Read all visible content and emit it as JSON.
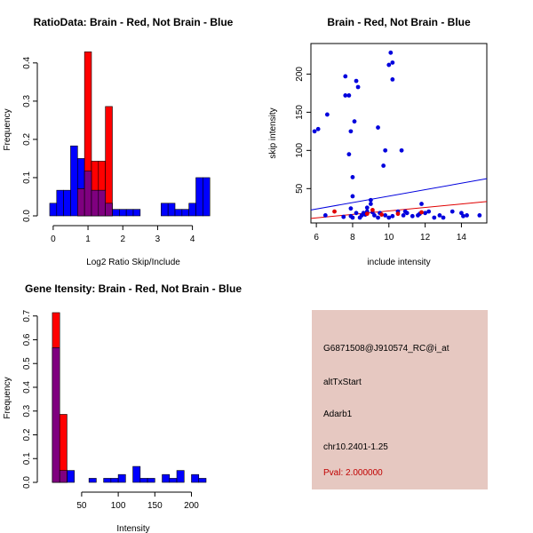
{
  "colors": {
    "red": "#ff0000",
    "blue": "#0000ff",
    "overlap": "#7f007f",
    "red_point": "#e00000",
    "blue_point": "#0000dd",
    "panel_bg": "#e6c8c1",
    "pval": "#c00000"
  },
  "chart_data": [
    {
      "id": "ratio",
      "type": "bar",
      "title": "RatioData: Brain - Red, Not Brain - Blue",
      "xlabel": "Log2 Ratio Skip/Include",
      "ylabel": "Frequency",
      "xlim": [
        -0.15,
        4.75
      ],
      "ylim": [
        0,
        0.46
      ],
      "xticks": [
        0,
        1,
        2,
        3,
        4
      ],
      "yticks": [
        0.0,
        0.1,
        0.2,
        0.3,
        0.4
      ],
      "ytick_labels": [
        "0.0",
        "0.1",
        "0.2",
        "0.3",
        "0.4"
      ],
      "bin_width": 0.2,
      "series": [
        {
          "name": "Not Brain",
          "color": "blue",
          "bins": [
            [
              -0.1,
              0.1,
              0.033
            ],
            [
              0.1,
              0.3,
              0.067
            ],
            [
              0.3,
              0.5,
              0.067
            ],
            [
              0.5,
              0.7,
              0.183
            ],
            [
              0.7,
              0.9,
              0.15
            ],
            [
              0.9,
              1.1,
              0.117
            ],
            [
              1.1,
              1.3,
              0.067
            ],
            [
              1.3,
              1.5,
              0.067
            ],
            [
              1.5,
              1.7,
              0.033
            ],
            [
              1.7,
              1.9,
              0.017
            ],
            [
              1.9,
              2.1,
              0.017
            ],
            [
              2.1,
              2.3,
              0.017
            ],
            [
              2.3,
              2.5,
              0.017
            ],
            [
              3.1,
              3.3,
              0.033
            ],
            [
              3.3,
              3.5,
              0.033
            ],
            [
              3.5,
              3.7,
              0.017
            ],
            [
              3.7,
              3.9,
              0.017
            ],
            [
              3.9,
              4.1,
              0.033
            ],
            [
              4.1,
              4.3,
              0.1
            ],
            [
              4.3,
              4.5,
              0.1
            ]
          ]
        },
        {
          "name": "Brain",
          "color": "red",
          "bins": [
            [
              0.7,
              0.9,
              0.071
            ],
            [
              0.9,
              1.1,
              0.429
            ],
            [
              1.1,
              1.3,
              0.143
            ],
            [
              1.3,
              1.5,
              0.143
            ],
            [
              1.5,
              1.7,
              0.286
            ]
          ]
        }
      ]
    },
    {
      "id": "scatter",
      "type": "scatter",
      "title": "Brain - Red, Not Brain - Blue",
      "xlabel": "include intensity",
      "ylabel": "skip intensity",
      "xlim": [
        5.7,
        15.4
      ],
      "ylim": [
        5,
        240
      ],
      "xticks": [
        6,
        8,
        10,
        12,
        14
      ],
      "yticks": [
        50,
        100,
        150,
        200
      ],
      "series": [
        {
          "name": "Not Brain",
          "color": "blue_point",
          "points": [
            [
              5.9,
              125
            ],
            [
              6.1,
              128
            ],
            [
              6.6,
              147
            ],
            [
              7.6,
              197
            ],
            [
              7.6,
              172
            ],
            [
              7.8,
              172
            ],
            [
              7.8,
              95
            ],
            [
              7.9,
              125
            ],
            [
              8.1,
              138
            ],
            [
              8.2,
              191
            ],
            [
              8.3,
              183
            ],
            [
              8.0,
              65
            ],
            [
              8.0,
              40
            ],
            [
              9.4,
              130
            ],
            [
              9.7,
              80
            ],
            [
              9.8,
              100
            ],
            [
              10.0,
              212
            ],
            [
              10.2,
              215
            ],
            [
              10.1,
              228
            ],
            [
              10.2,
              193
            ],
            [
              10.7,
              100
            ],
            [
              9.0,
              35
            ],
            [
              8.8,
              25
            ],
            [
              8.8,
              20
            ],
            [
              8.6,
              18
            ],
            [
              8.4,
              12
            ],
            [
              8.5,
              15
            ],
            [
              7.9,
              14
            ],
            [
              8.0,
              12
            ],
            [
              7.5,
              13
            ],
            [
              6.5,
              15
            ],
            [
              9.0,
              30
            ],
            [
              9.2,
              15
            ],
            [
              9.4,
              12
            ],
            [
              9.5,
              18
            ],
            [
              9.8,
              15
            ],
            [
              10.0,
              12
            ],
            [
              10.2,
              14
            ],
            [
              10.5,
              20
            ],
            [
              10.8,
              15
            ],
            [
              11.0,
              18
            ],
            [
              11.3,
              14
            ],
            [
              11.6,
              15
            ],
            [
              11.8,
              30
            ],
            [
              12.0,
              18
            ],
            [
              12.2,
              20
            ],
            [
              12.5,
              12
            ],
            [
              12.8,
              15
            ],
            [
              13.0,
              12
            ],
            [
              13.5,
              20
            ],
            [
              14.0,
              18
            ],
            [
              14.1,
              14
            ],
            [
              14.3,
              15
            ],
            [
              15.0,
              15
            ],
            [
              8.2,
              18
            ],
            [
              7.9,
              24
            ],
            [
              8.7,
              16
            ],
            [
              9.1,
              19
            ],
            [
              10.9,
              20
            ],
            [
              11.7,
              17
            ]
          ]
        },
        {
          "name": "Brain",
          "color": "red_point",
          "points": [
            [
              7.0,
              20
            ],
            [
              8.8,
              17
            ],
            [
              9.1,
              22
            ],
            [
              9.6,
              16
            ],
            [
              10.5,
              17
            ],
            [
              11.8,
              19
            ]
          ]
        }
      ],
      "fits": [
        {
          "name": "Not Brain fit",
          "color": "blue_point",
          "from": [
            5.7,
            22
          ],
          "to": [
            15.4,
            63
          ]
        },
        {
          "name": "Brain fit",
          "color": "red_point",
          "from": [
            5.7,
            11
          ],
          "to": [
            15.4,
            33
          ]
        }
      ]
    },
    {
      "id": "gene",
      "type": "bar",
      "title": "Gene Itensity: Brain - Red, Not Brain - Blue",
      "xlabel": "Intensity",
      "ylabel": "Frequency",
      "xlim": [
        4,
        237
      ],
      "ylim": [
        0,
        0.74
      ],
      "xticks": [
        50,
        100,
        150,
        200
      ],
      "yticks": [
        0.0,
        0.1,
        0.2,
        0.3,
        0.4,
        0.5,
        0.6,
        0.7
      ],
      "ytick_labels": [
        "0.0",
        "0.1",
        "0.2",
        "0.3",
        "0.4",
        "0.5",
        "0.6",
        "0.7"
      ],
      "bin_width": 10,
      "series": [
        {
          "name": "Not Brain",
          "color": "blue",
          "bins": [
            [
              10,
              20,
              0.567
            ],
            [
              20,
              30,
              0.05
            ],
            [
              30,
              40,
              0.05
            ],
            [
              60,
              70,
              0.017
            ],
            [
              80,
              90,
              0.017
            ],
            [
              90,
              100,
              0.017
            ],
            [
              100,
              110,
              0.033
            ],
            [
              120,
              130,
              0.067
            ],
            [
              130,
              140,
              0.017
            ],
            [
              140,
              150,
              0.017
            ],
            [
              160,
              170,
              0.033
            ],
            [
              170,
              180,
              0.017
            ],
            [
              180,
              190,
              0.05
            ],
            [
              200,
              210,
              0.033
            ],
            [
              210,
              220,
              0.017
            ]
          ]
        },
        {
          "name": "Brain",
          "color": "red",
          "bins": [
            [
              10,
              20,
              0.714
            ],
            [
              20,
              30,
              0.286
            ]
          ]
        }
      ]
    }
  ],
  "info": {
    "probe": "G6871508@J910574_RC@i_at",
    "event": "altTxStart",
    "gene": "Adarb1",
    "location": "chr10.2401-1.25",
    "pval": "Pval: 2.000000"
  }
}
